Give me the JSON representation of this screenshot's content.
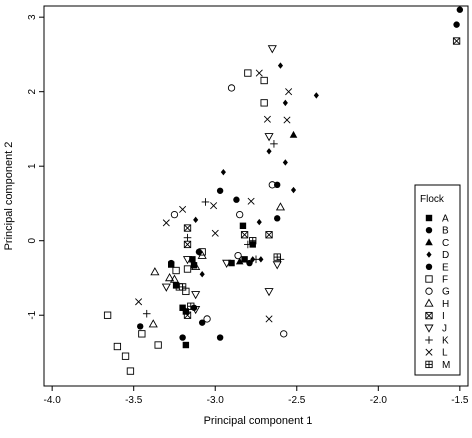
{
  "chart_data": {
    "type": "scatter",
    "xlabel": "Principal component 1",
    "ylabel": "Principal component 2",
    "xlim": [
      -4.05,
      -1.45
    ],
    "ylim": [
      -1.95,
      3.15
    ],
    "x_ticks": [
      -4.0,
      -3.5,
      -3.0,
      -2.5,
      -2.0,
      -1.5
    ],
    "x_tick_labels": [
      "-4.0",
      "-3.5",
      "-3.0",
      "-2.5",
      "-2.0",
      "-1.5"
    ],
    "y_ticks": [
      -1,
      0,
      1,
      2,
      3
    ],
    "y_tick_labels": [
      "-1",
      "0",
      "1",
      "2",
      "3"
    ],
    "grid": false,
    "legend": {
      "title": "Flock",
      "placement": "bottom-right"
    },
    "series": [
      {
        "name": "A",
        "marker": "filled-square",
        "points": [
          [
            -3.2,
            -0.9
          ],
          [
            -3.18,
            -0.95
          ],
          [
            -3.27,
            -0.32
          ],
          [
            -3.24,
            -0.6
          ],
          [
            -3.13,
            -0.33
          ],
          [
            -3.18,
            -1.4
          ],
          [
            -2.9,
            -0.3
          ],
          [
            -2.82,
            -0.25
          ],
          [
            -3.14,
            -0.25
          ],
          [
            -2.83,
            0.2
          ],
          [
            -2.77,
            -0.05
          ]
        ]
      },
      {
        "name": "B",
        "marker": "filled-circle",
        "points": [
          [
            -1.52,
            2.9
          ],
          [
            -1.5,
            3.1
          ],
          [
            -2.97,
            0.67
          ],
          [
            -2.62,
            0.75
          ],
          [
            -2.79,
            -0.3
          ],
          [
            -3.1,
            -0.15
          ],
          [
            -2.97,
            -1.3
          ],
          [
            -3.2,
            -1.3
          ],
          [
            -3.08,
            -1.1
          ],
          [
            -3.46,
            -1.15
          ],
          [
            -3.13,
            -0.9
          ]
        ]
      },
      {
        "name": "C",
        "marker": "filled-triangle",
        "points": [
          [
            -2.52,
            1.42
          ],
          [
            -2.85,
            -0.28
          ]
        ]
      },
      {
        "name": "D",
        "marker": "filled-diamond",
        "points": [
          [
            -2.6,
            2.35
          ],
          [
            -2.57,
            1.85
          ],
          [
            -2.38,
            1.95
          ],
          [
            -2.67,
            1.2
          ],
          [
            -2.57,
            1.05
          ],
          [
            -2.95,
            0.92
          ],
          [
            -2.52,
            0.68
          ],
          [
            -3.12,
            0.28
          ],
          [
            -2.73,
            0.25
          ],
          [
            -2.77,
            -0.25
          ],
          [
            -2.72,
            -0.25
          ],
          [
            -3.08,
            -0.45
          ],
          [
            -3.19,
            -0.92
          ]
        ]
      },
      {
        "name": "E",
        "marker": "filled-circle",
        "points": [
          [
            -2.87,
            0.55
          ],
          [
            -2.62,
            0.3
          ],
          [
            -3.27,
            -0.3
          ]
        ]
      },
      {
        "name": "F",
        "marker": "open-square",
        "points": [
          [
            -3.66,
            -1.0
          ],
          [
            -3.6,
            -1.42
          ],
          [
            -3.55,
            -1.55
          ],
          [
            -3.52,
            -1.75
          ],
          [
            -3.45,
            -1.25
          ],
          [
            -3.35,
            -1.4
          ],
          [
            -3.22,
            -0.62
          ],
          [
            -2.8,
            2.25
          ],
          [
            -2.7,
            2.15
          ],
          [
            -2.7,
            1.85
          ],
          [
            -3.17,
            -0.38
          ],
          [
            -3.24,
            -0.4
          ],
          [
            -3.18,
            -0.68
          ],
          [
            -3.08,
            -0.15
          ]
        ]
      },
      {
        "name": "G",
        "marker": "open-circle",
        "points": [
          [
            -2.9,
            2.05
          ],
          [
            -2.65,
            0.75
          ],
          [
            -2.85,
            0.35
          ],
          [
            -2.86,
            -0.2
          ],
          [
            -2.58,
            -1.25
          ],
          [
            -3.25,
            0.35
          ],
          [
            -3.05,
            -1.05
          ]
        ]
      },
      {
        "name": "H",
        "marker": "open-triangle",
        "points": [
          [
            -3.37,
            -0.42
          ],
          [
            -3.28,
            -0.5
          ],
          [
            -3.38,
            -1.12
          ],
          [
            -3.25,
            -0.52
          ],
          [
            -3.08,
            -0.2
          ],
          [
            -2.6,
            0.45
          ],
          [
            -3.12,
            -0.35
          ]
        ]
      },
      {
        "name": "I",
        "marker": "boxed-x",
        "points": [
          [
            -1.52,
            2.68
          ],
          [
            -3.17,
            0.17
          ],
          [
            -2.82,
            0.08
          ],
          [
            -2.67,
            0.08
          ],
          [
            -3.17,
            -0.05
          ],
          [
            -3.17,
            -1.0
          ]
        ]
      },
      {
        "name": "J",
        "marker": "open-down-triangle",
        "points": [
          [
            -2.65,
            2.58
          ],
          [
            -2.67,
            1.4
          ],
          [
            -3.3,
            -0.62
          ],
          [
            -3.12,
            -0.72
          ],
          [
            -3.12,
            -0.92
          ],
          [
            -2.62,
            -0.32
          ],
          [
            -3.17,
            -0.25
          ],
          [
            -2.67,
            -0.68
          ],
          [
            -2.93,
            -0.3
          ]
        ]
      },
      {
        "name": "K",
        "marker": "plus",
        "points": [
          [
            -2.64,
            1.3
          ],
          [
            -3.06,
            0.52
          ],
          [
            -3.42,
            -0.98
          ],
          [
            -3.17,
            0.04
          ],
          [
            -2.75,
            -0.25
          ],
          [
            -2.6,
            -0.25
          ],
          [
            -2.8,
            -0.05
          ]
        ]
      },
      {
        "name": "L",
        "marker": "x",
        "points": [
          [
            -2.73,
            2.25
          ],
          [
            -2.68,
            1.63
          ],
          [
            -2.56,
            1.62
          ],
          [
            -2.55,
            2.0
          ],
          [
            -3.2,
            0.42
          ],
          [
            -2.78,
            0.53
          ],
          [
            -3.01,
            0.47
          ],
          [
            -3.0,
            0.1
          ],
          [
            -3.3,
            0.24
          ],
          [
            -3.47,
            -0.82
          ],
          [
            -2.67,
            -1.05
          ]
        ]
      },
      {
        "name": "M",
        "marker": "boxed-plus",
        "points": [
          [
            -2.77,
            0.0
          ],
          [
            -2.62,
            -0.22
          ],
          [
            -3.2,
            -0.62
          ],
          [
            -3.15,
            -0.88
          ]
        ]
      }
    ]
  }
}
